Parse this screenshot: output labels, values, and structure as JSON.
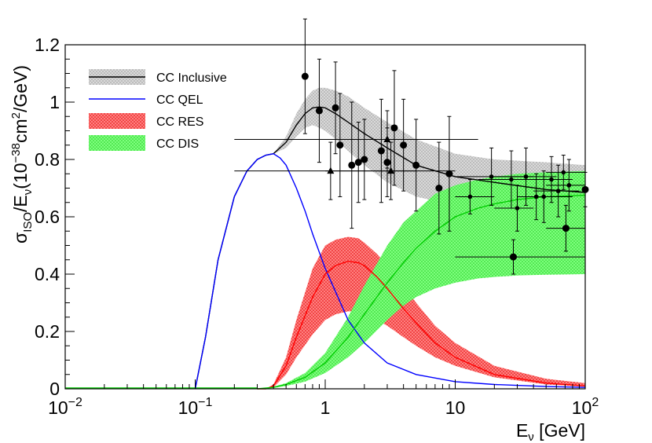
{
  "chart_data": {
    "type": "line",
    "x_scale": "log",
    "xlim": [
      0.01,
      100
    ],
    "ylim": [
      0,
      1.2
    ],
    "xlabel": {
      "main": "E",
      "sub": "ν",
      "rest": " [GeV]"
    },
    "ylabel": {
      "p1": "σ",
      "sub1": "ISO",
      "p2": "/E",
      "sub2": "ν",
      "p3": "(10",
      "sup1": "−38",
      "p4": "cm",
      "sup2": "2",
      "p5": "/GeV)"
    },
    "xticks": [
      {
        "value": 0.01,
        "base": "10",
        "exp": "−2"
      },
      {
        "value": 0.1,
        "base": "10",
        "exp": "−1"
      },
      {
        "value": 1,
        "base": "1",
        "exp": ""
      },
      {
        "value": 10,
        "base": "10",
        "exp": ""
      },
      {
        "value": 100,
        "base": "10",
        "exp": "2"
      }
    ],
    "yticks": [
      {
        "value": 0,
        "label": "0"
      },
      {
        "value": 0.2,
        "label": "0.2"
      },
      {
        "value": 0.4,
        "label": "0.4"
      },
      {
        "value": 0.6,
        "label": "0.6"
      },
      {
        "value": 0.8,
        "label": "0.8"
      },
      {
        "value": 1.0,
        "label": "1"
      },
      {
        "value": 1.2,
        "label": "1.2"
      }
    ],
    "legend": {
      "placement": "top-left",
      "entries": [
        {
          "label": "CC Inclusive",
          "kind": "band-line",
          "color": "#000000",
          "fill": "#bdbdbd"
        },
        {
          "label": "CC QEL",
          "kind": "line",
          "color": "#0000ff"
        },
        {
          "label": "CC RES",
          "kind": "band-line",
          "color": "#ff0000",
          "fill": "#ff6b6b"
        },
        {
          "label": "CC DIS",
          "kind": "band-line",
          "color": "#00cc00",
          "fill": "#66ff66"
        }
      ]
    },
    "series": [
      {
        "name": "CC Inclusive",
        "color": "#000000",
        "band_color": "#bdbdbd",
        "x": [
          0.1,
          0.12,
          0.15,
          0.2,
          0.25,
          0.3,
          0.35,
          0.4,
          0.5,
          0.6,
          0.7,
          0.8,
          0.9,
          1.0,
          1.2,
          1.5,
          2,
          3,
          5,
          10,
          20,
          50,
          100
        ],
        "y": [
          0,
          0.18,
          0.45,
          0.67,
          0.76,
          0.8,
          0.815,
          0.82,
          0.86,
          0.92,
          0.96,
          0.98,
          0.983,
          0.98,
          0.96,
          0.93,
          0.89,
          0.84,
          0.78,
          0.74,
          0.72,
          0.695,
          0.685
        ],
        "lo": [
          0,
          0.18,
          0.45,
          0.67,
          0.76,
          0.8,
          0.815,
          0.82,
          0.84,
          0.88,
          0.91,
          0.92,
          0.91,
          0.9,
          0.87,
          0.83,
          0.78,
          0.72,
          0.67,
          0.64,
          0.62,
          0.6,
          0.59
        ],
        "hi": [
          0,
          0.18,
          0.45,
          0.67,
          0.76,
          0.8,
          0.815,
          0.82,
          0.88,
          0.96,
          1.01,
          1.04,
          1.05,
          1.05,
          1.04,
          1.02,
          0.98,
          0.93,
          0.87,
          0.82,
          0.8,
          0.79,
          0.78
        ]
      },
      {
        "name": "CC QEL",
        "color": "#0000ff",
        "x": [
          0.1,
          0.12,
          0.15,
          0.2,
          0.25,
          0.3,
          0.35,
          0.4,
          0.45,
          0.5,
          0.6,
          0.7,
          0.8,
          1.0,
          1.5,
          2,
          3,
          5,
          10,
          20,
          50,
          100
        ],
        "y": [
          0,
          0.18,
          0.45,
          0.67,
          0.76,
          0.8,
          0.815,
          0.82,
          0.805,
          0.78,
          0.7,
          0.62,
          0.54,
          0.42,
          0.24,
          0.16,
          0.09,
          0.05,
          0.025,
          0.015,
          0.008,
          0.005
        ]
      },
      {
        "name": "CC RES",
        "color": "#ff0000",
        "band_color": "#ff6b6b",
        "x": [
          0.3,
          0.35,
          0.4,
          0.5,
          0.6,
          0.8,
          1.0,
          1.2,
          1.5,
          1.8,
          2,
          2.5,
          3,
          4,
          5,
          7,
          10,
          20,
          50,
          100
        ],
        "y": [
          0,
          0.0,
          0.01,
          0.08,
          0.18,
          0.32,
          0.4,
          0.43,
          0.445,
          0.44,
          0.43,
          0.39,
          0.35,
          0.28,
          0.23,
          0.16,
          0.11,
          0.05,
          0.02,
          0.01
        ],
        "lo": [
          0,
          0.0,
          0.005,
          0.05,
          0.11,
          0.19,
          0.24,
          0.26,
          0.27,
          0.27,
          0.265,
          0.24,
          0.22,
          0.18,
          0.15,
          0.11,
          0.08,
          0.04,
          0.015,
          0.008
        ],
        "hi": [
          0,
          0.0,
          0.015,
          0.11,
          0.24,
          0.42,
          0.5,
          0.52,
          0.53,
          0.525,
          0.51,
          0.47,
          0.43,
          0.36,
          0.3,
          0.22,
          0.16,
          0.08,
          0.035,
          0.02
        ]
      },
      {
        "name": "CC DIS",
        "color": "#00cc00",
        "band_color": "#66ff66",
        "x": [
          0.3,
          0.4,
          0.5,
          0.7,
          1.0,
          1.5,
          2,
          3,
          4,
          5,
          7,
          10,
          15,
          20,
          30,
          50,
          100
        ],
        "y": [
          0,
          0.005,
          0.015,
          0.04,
          0.09,
          0.18,
          0.26,
          0.37,
          0.44,
          0.49,
          0.55,
          0.6,
          0.63,
          0.645,
          0.66,
          0.67,
          0.675
        ],
        "lo": [
          0,
          0.003,
          0.01,
          0.025,
          0.055,
          0.11,
          0.16,
          0.24,
          0.29,
          0.32,
          0.35,
          0.37,
          0.385,
          0.39,
          0.395,
          0.398,
          0.4
        ],
        "hi": [
          0,
          0.007,
          0.02,
          0.055,
          0.125,
          0.25,
          0.36,
          0.5,
          0.58,
          0.62,
          0.68,
          0.71,
          0.73,
          0.74,
          0.75,
          0.755,
          0.76
        ]
      }
    ],
    "data_points": [
      {
        "x": 0.7,
        "y": 1.09,
        "yerr": 0.2,
        "marker": "circle"
      },
      {
        "x": 0.9,
        "y": 0.97,
        "yerr": 0.18,
        "marker": "circle"
      },
      {
        "x": 1.2,
        "y": 0.98,
        "yerr": 0.16,
        "marker": "circle"
      },
      {
        "x": 1.3,
        "y": 0.85,
        "yerr": 0.18,
        "marker": "circle"
      },
      {
        "x": 1.6,
        "y": 0.78,
        "yerr": 0.22,
        "marker": "circle"
      },
      {
        "x": 1.8,
        "y": 0.79,
        "yerr": 0.14,
        "marker": "circle"
      },
      {
        "x": 2.0,
        "y": 0.8,
        "yerr": 0.14,
        "marker": "circle"
      },
      {
        "x": 2.7,
        "y": 0.83,
        "yerr": 0.18,
        "marker": "circle"
      },
      {
        "x": 3.0,
        "y": 0.79,
        "yerr": 0.12,
        "marker": "circle"
      },
      {
        "x": 3.4,
        "y": 0.91,
        "yerr": 0.2,
        "marker": "circle"
      },
      {
        "x": 4.0,
        "y": 0.85,
        "yerr": 0.16,
        "marker": "circle"
      },
      {
        "x": 5.0,
        "y": 0.78,
        "yerr": 0.16,
        "marker": "circle"
      },
      {
        "x": 7.5,
        "y": 0.7,
        "yerr": 0.16,
        "marker": "circle"
      },
      {
        "x": 9.0,
        "y": 0.75,
        "yerr": 0.2,
        "marker": "circle"
      },
      {
        "x": 28,
        "y": 0.46,
        "yerr": 0.06,
        "marker": "circle",
        "xlo": 10,
        "xhi": 100
      },
      {
        "x": 71,
        "y": 0.56,
        "yerr": 0.08,
        "marker": "circle",
        "xlo": 50,
        "xhi": 100
      },
      {
        "x": 100,
        "y": 0.695,
        "yerr": 0.06,
        "marker": "circle"
      },
      {
        "x": 1.1,
        "y": 0.76,
        "yerr": 0.1,
        "marker": "triangle",
        "xlo": 0.2,
        "xhi": 5
      },
      {
        "x": 3.0,
        "y": 0.87,
        "yerr": 0.1,
        "marker": "triangle",
        "xlo": 0.2,
        "xhi": 15
      },
      {
        "x": 3.2,
        "y": 0.76,
        "yerr": 0.1,
        "marker": "triangle",
        "xlo": 1,
        "xhi": 10
      },
      {
        "x": 13,
        "y": 0.67,
        "yerr": 0.06,
        "marker": "dot",
        "xlo": 10,
        "xhi": 20
      },
      {
        "x": 19,
        "y": 0.74,
        "yerr": 0.1,
        "marker": "dot",
        "xlo": 10,
        "xhi": 40
      },
      {
        "x": 27,
        "y": 0.73,
        "yerr": 0.1,
        "marker": "dot",
        "xlo": 15,
        "xhi": 50
      },
      {
        "x": 30,
        "y": 0.63,
        "yerr": 0.08,
        "marker": "dot",
        "xlo": 20,
        "xhi": 40
      },
      {
        "x": 35,
        "y": 0.74,
        "yerr": 0.1,
        "marker": "dot",
        "xlo": 20,
        "xhi": 60
      },
      {
        "x": 42,
        "y": 0.67,
        "yerr": 0.08,
        "marker": "dot",
        "xlo": 30,
        "xhi": 60
      },
      {
        "x": 48,
        "y": 0.67,
        "yerr": 0.09,
        "marker": "dot",
        "xlo": 30,
        "xhi": 80
      },
      {
        "x": 55,
        "y": 0.73,
        "yerr": 0.08,
        "marker": "dot",
        "xlo": 40,
        "xhi": 80
      },
      {
        "x": 62,
        "y": 0.69,
        "yerr": 0.09,
        "marker": "dot",
        "xlo": 40,
        "xhi": 90
      },
      {
        "x": 68,
        "y": 0.755,
        "yerr": 0.06,
        "marker": "dot",
        "xlo": 50,
        "xhi": 100
      },
      {
        "x": 75,
        "y": 0.71,
        "yerr": 0.09,
        "marker": "dot",
        "xlo": 50,
        "xhi": 100
      }
    ]
  }
}
